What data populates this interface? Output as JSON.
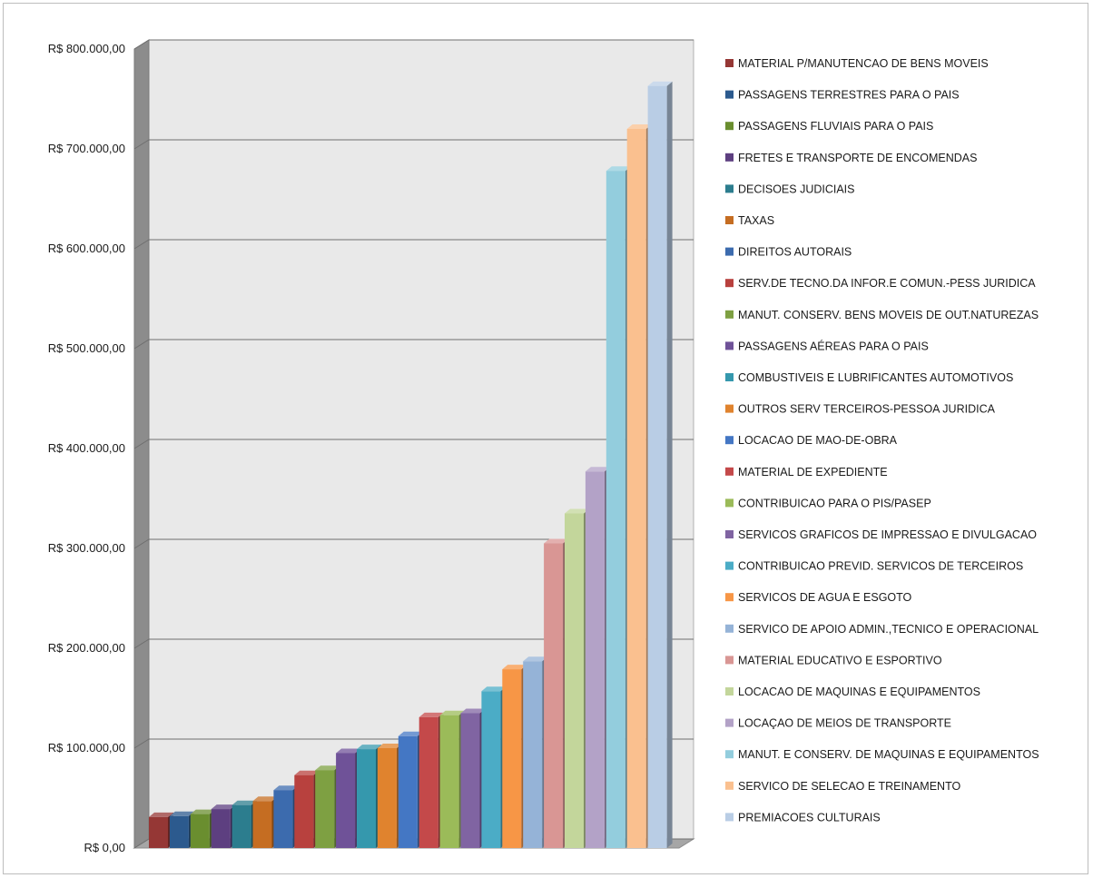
{
  "chart_data": {
    "type": "bar",
    "title": "",
    "xlabel": "",
    "ylabel": "",
    "ylim": [
      0,
      800000
    ],
    "y_ticks": [
      "R$ 0,00",
      "R$ 100.000,00",
      "R$ 200.000,00",
      "R$ 300.000,00",
      "R$ 400.000,00",
      "R$ 500.000,00",
      "R$ 600.000,00",
      "R$ 700.000,00",
      "R$ 800.000,00"
    ],
    "grid": true,
    "legend_position": "right",
    "style": "3d-column",
    "series": [
      {
        "name": "MATERIAL P/MANUTENCAO  DE BENS MOVEIS",
        "value": 31000,
        "color": "#953735"
      },
      {
        "name": "PASSAGENS TERRESTRES  PARA O PAIS",
        "value": 32000,
        "color": "#2c5a8e"
      },
      {
        "name": "PASSAGENS FLUVIAIS PARA O PAIS",
        "value": 34000,
        "color": "#6a8e2f"
      },
      {
        "name": "FRETES E TRANSPORTE DE ENCOMENDAS",
        "value": 39000,
        "color": "#5d3f80"
      },
      {
        "name": "DECISOES JUDICIAIS",
        "value": 43000,
        "color": "#2c7d8e"
      },
      {
        "name": "TAXAS",
        "value": 47000,
        "color": "#c56d22"
      },
      {
        "name": "DIREITOS AUTORAIS",
        "value": 58000,
        "color": "#3c6bae"
      },
      {
        "name": "SERV.DE TECNO.DA INFOR.E COMUN.-PESS JURIDICA",
        "value": 73000,
        "color": "#b8413e"
      },
      {
        "name": "MANUT. CONSERV.  BENS MOVEIS DE OUT.NATUREZAS",
        "value": 78000,
        "color": "#7ea042"
      },
      {
        "name": "PASSAGENS AÉREAS PARA O PAIS",
        "value": 95000,
        "color": "#6f5298"
      },
      {
        "name": "COMBUSTIVEIS  E LUBRIFICANTES  AUTOMOTIVOS",
        "value": 99000,
        "color": "#3598ad"
      },
      {
        "name": "OUTROS SERV TERCEIROS-PESSOA JURIDICA",
        "value": 100000,
        "color": "#e0832e"
      },
      {
        "name": "LOCACAO DE MAO-DE-OBRA",
        "value": 112000,
        "color": "#4477c4"
      },
      {
        "name": "MATERIAL DE EXPEDIENTE",
        "value": 131000,
        "color": "#c4494a"
      },
      {
        "name": "CONTRIBUICAO  PARA O PIS/PASEP",
        "value": 133000,
        "color": "#9bbb59"
      },
      {
        "name": "SERVICOS GRAFICOS DE IMPRESSAO E DIVULGACAO",
        "value": 135000,
        "color": "#8064a2"
      },
      {
        "name": "CONTRIBUICAO  PREVID.  SERVICOS DE TERCEIROS",
        "value": 157000,
        "color": "#4bacc6"
      },
      {
        "name": "SERVICOS DE AGUA E ESGOTO",
        "value": 179000,
        "color": "#f79646"
      },
      {
        "name": "SERVICO DE APOIO ADMIN.,TECNICO  E OPERACIONAL",
        "value": 187000,
        "color": "#95b3d7"
      },
      {
        "name": "MATERIAL EDUCATIVO  E ESPORTIVO",
        "value": 305000,
        "color": "#d99694"
      },
      {
        "name": "LOCACAO DE MAQUINAS E EQUIPAMENTOS",
        "value": 335000,
        "color": "#c3d69b"
      },
      {
        "name": "LOCAÇAO DE MEIOS DE TRANSPORTE",
        "value": 377000,
        "color": "#b3a2c7"
      },
      {
        "name": "MANUT.  E CONSERV.  DE MAQUINAS E EQUIPAMENTOS",
        "value": 678000,
        "color": "#93cddd"
      },
      {
        "name": "SERVICO DE SELECAO E TREINAMENTO",
        "value": 720000,
        "color": "#fac08f"
      },
      {
        "name": "PREMIACOES CULTURAIS",
        "value": 763000,
        "color": "#b9cde5"
      }
    ]
  }
}
